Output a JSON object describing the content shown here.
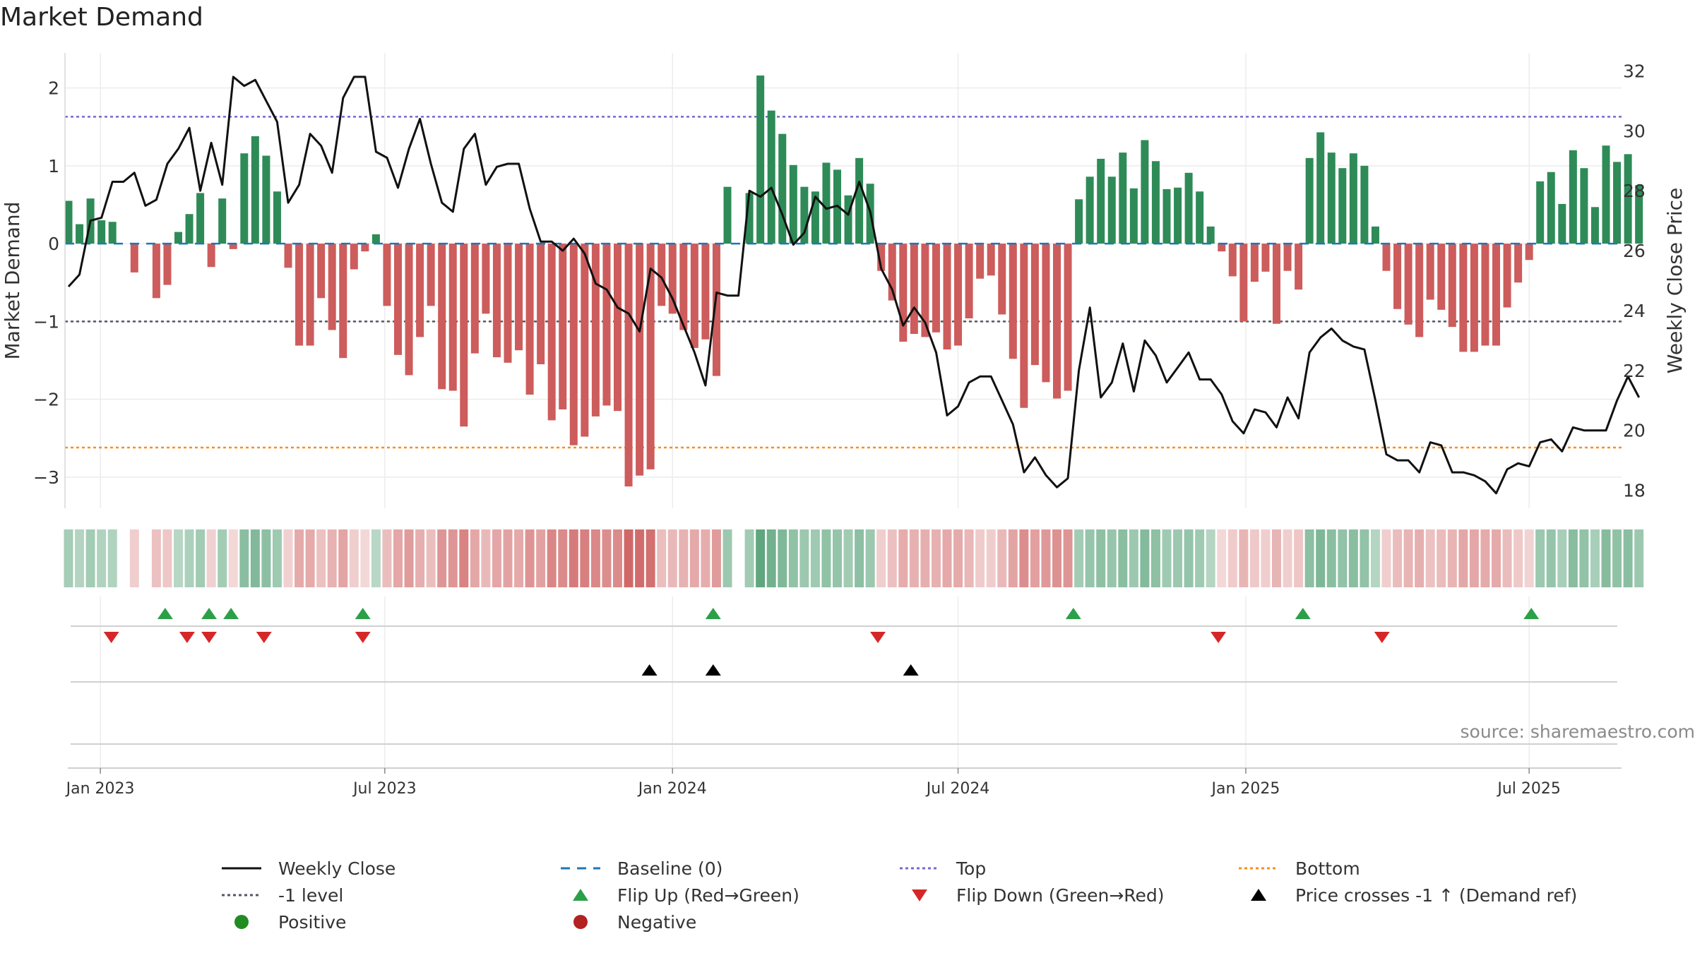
{
  "title": "Market Demand",
  "source": "source: sharemaestro.com",
  "chart_data": {
    "type": "bar+line",
    "title": "Market Demand",
    "y_left_label": "Market Demand",
    "y_right_label": "Weekly Close Price",
    "y_left_ticks": [
      2,
      1,
      0,
      -1,
      -2,
      -3
    ],
    "y_left_tick_labels": [
      "2",
      "1",
      "0",
      "−1",
      "−2",
      "−3"
    ],
    "y_left_range": [
      -3.4,
      2.45
    ],
    "y_right_ticks": [
      32,
      30,
      28,
      26,
      24,
      22,
      20,
      18
    ],
    "y_right_range": [
      17.4,
      32.6
    ],
    "x_ticks": [
      {
        "label": "Jan 2023",
        "week": 2.9
      },
      {
        "label": "Jul 2023",
        "week": 28.8
      },
      {
        "label": "Jan 2024",
        "week": 55
      },
      {
        "label": "Jul 2024",
        "week": 81
      },
      {
        "label": "Jan 2025",
        "week": 107.2
      },
      {
        "label": "Jul 2025",
        "week": 133
      }
    ],
    "reference_lines": {
      "top": 1.63,
      "minus_one": -1.0,
      "bottom": -2.62
    },
    "demand": [
      0.55,
      0.25,
      0.58,
      0.3,
      0.28,
      0,
      -0.37,
      0,
      -0.7,
      -0.53,
      0.15,
      0.38,
      0.65,
      -0.3,
      0.58,
      -0.07,
      1.16,
      1.38,
      1.13,
      0.67,
      -0.31,
      -1.31,
      -1.31,
      -0.7,
      -1.11,
      -1.47,
      -0.33,
      -0.1,
      0.12,
      -0.8,
      -1.43,
      -1.69,
      -1.2,
      -0.8,
      -1.87,
      -1.89,
      -2.35,
      -1.41,
      -0.9,
      -1.46,
      -1.53,
      -1.37,
      -1.94,
      -1.55,
      -2.27,
      -2.13,
      -2.59,
      -2.48,
      -2.22,
      -2.08,
      -2.15,
      -3.12,
      -2.98,
      -2.9,
      -0.8,
      -0.9,
      -1.11,
      -1.34,
      -1.23,
      -1.7,
      0.73,
      0,
      0.65,
      2.16,
      1.71,
      1.41,
      1.01,
      0.73,
      0.67,
      1.04,
      0.95,
      0.62,
      1.1,
      0.77,
      -0.35,
      -0.73,
      -1.26,
      -1.16,
      -1.2,
      -1.14,
      -1.36,
      -1.31,
      -0.96,
      -0.45,
      -0.41,
      -0.91,
      -1.48,
      -2.11,
      -1.56,
      -1.78,
      -1.99,
      -1.89,
      0.57,
      0.86,
      1.09,
      0.86,
      1.17,
      0.71,
      1.33,
      1.06,
      0.7,
      0.72,
      0.91,
      0.67,
      0.22,
      -0.1,
      -0.42,
      -1.0,
      -0.49,
      -0.36,
      -1.03,
      -0.35,
      -0.59,
      1.1,
      1.43,
      1.17,
      0.97,
      1.16,
      1.0,
      0.22,
      -0.35,
      -0.84,
      -1.04,
      -1.2,
      -0.72,
      -0.85,
      -1.07,
      -1.39,
      -1.39,
      -1.31,
      -1.31,
      -0.82,
      -0.5,
      -0.21,
      0.8,
      0.92,
      0.51,
      1.2,
      0.97,
      0.47,
      1.26,
      1.05,
      1.15,
      0.75
    ],
    "weekly_close": [
      24.8,
      25.2,
      27.0,
      27.1,
      28.3,
      28.3,
      28.6,
      27.5,
      27.7,
      28.9,
      29.4,
      30.1,
      28.0,
      29.6,
      28.2,
      31.8,
      31.5,
      31.7,
      31.0,
      30.3,
      27.6,
      28.2,
      29.9,
      29.5,
      28.6,
      31.1,
      31.8,
      31.8,
      29.3,
      29.1,
      28.1,
      29.4,
      30.4,
      28.9,
      27.6,
      27.3,
      29.4,
      29.9,
      28.2,
      28.8,
      28.9,
      28.9,
      27.4,
      26.3,
      26.3,
      26.0,
      26.4,
      25.9,
      24.9,
      24.7,
      24.1,
      23.9,
      23.3,
      25.4,
      25.1,
      24.4,
      23.5,
      22.6,
      21.5,
      24.6,
      24.5,
      24.5,
      28.0,
      27.8,
      28.1,
      27.2,
      26.2,
      26.6,
      27.8,
      27.4,
      27.5,
      27.2,
      28.3,
      27.3,
      25.4,
      24.7,
      23.5,
      24.1,
      23.6,
      22.6,
      20.5,
      20.8,
      21.6,
      21.8,
      21.8,
      21.0,
      20.2,
      18.6,
      19.1,
      18.5,
      18.1,
      18.4,
      22.0,
      24.1,
      21.1,
      21.6,
      22.9,
      21.3,
      23.0,
      22.5,
      21.6,
      22.1,
      22.6,
      21.7,
      21.7,
      21.2,
      20.3,
      19.9,
      20.7,
      20.6,
      20.1,
      21.1,
      20.4,
      22.6,
      23.1,
      23.4,
      23.0,
      22.8,
      22.7,
      21.0,
      19.2,
      19.0,
      19.0,
      18.6,
      19.6,
      19.5,
      18.6,
      18.6,
      18.5,
      18.3,
      17.9,
      18.7,
      18.9,
      18.8,
      19.6,
      19.7,
      19.3,
      20.1,
      20.0,
      20.0,
      20.0,
      21.0,
      21.8,
      21.1
    ],
    "flip_up": [
      8.8,
      12.8,
      14.8,
      26.8,
      58.7,
      91.5,
      112.4,
      133.2
    ],
    "flip_down": [
      3.9,
      10.8,
      12.8,
      17.8,
      26.8,
      73.7,
      104.7,
      119.6
    ],
    "price_cross_up": [
      52.9,
      58.7,
      76.7
    ],
    "legend": [
      "Weekly Close",
      "Baseline (0)",
      "Top",
      "Bottom",
      "-1 level",
      "Flip Up (Red→Green)",
      "Flip Down (Green→Red)",
      "Price crosses -1 ↑ (Demand ref)",
      "Positive",
      "Negative"
    ]
  },
  "colors": {
    "positive_bar": "#2e8b57",
    "negative_bar": "#cd5c5c",
    "price_line": "#111111",
    "baseline": "#1f77b4",
    "top_line": "#7b68cc",
    "minus_one_line": "#555566",
    "bottom_line": "#ff8c1a",
    "flip_up": "#2ca048",
    "flip_down": "#d62728",
    "cross_marker": "#000000",
    "positive_dot": "#228b22",
    "negative_dot": "#b22222"
  }
}
